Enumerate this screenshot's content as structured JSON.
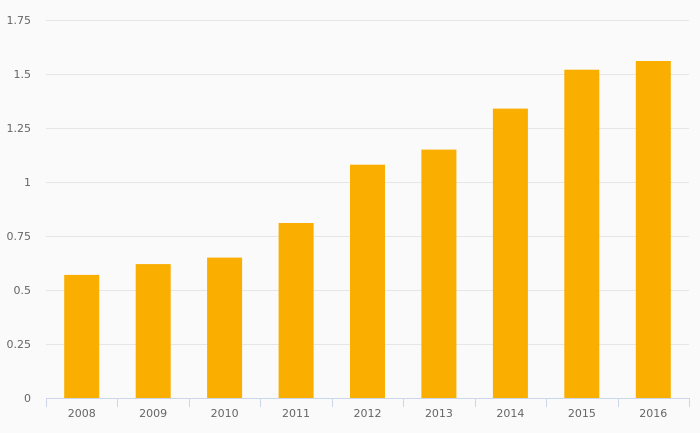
{
  "chart_data": {
    "type": "bar",
    "title": "",
    "xlabel": "",
    "ylabel": "",
    "categories": [
      "2008",
      "2009",
      "2010",
      "2011",
      "2012",
      "2013",
      "2014",
      "2015",
      "2016"
    ],
    "values": [
      0.57,
      0.62,
      0.65,
      0.81,
      1.08,
      1.15,
      1.34,
      1.52,
      1.56
    ],
    "ylim": [
      0,
      1.75
    ],
    "yticks": [
      0,
      0.25,
      0.5,
      0.75,
      1,
      1.25,
      1.5,
      1.75
    ],
    "ytick_labels": [
      "0",
      "0.25",
      "0.5",
      "0.75",
      "1",
      "1.25",
      "1.5",
      "1.75"
    ],
    "grid": true,
    "legend": "none",
    "colors": {
      "bar": "#f9ae00",
      "grid": "#e6e6e6",
      "axis": "#ccd6eb",
      "label": "#666666",
      "background": "#fafafa"
    }
  }
}
